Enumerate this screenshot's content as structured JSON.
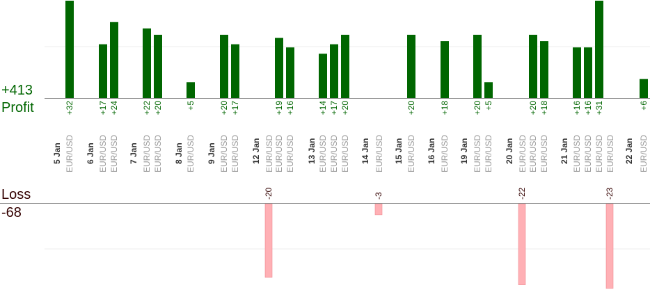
{
  "chart_data": {
    "type": "bar",
    "summary": {
      "profit_label": "Profit",
      "profit_total": "+413",
      "loss_label": "Loss",
      "loss_total": "-68"
    },
    "colors": {
      "profit": "#006600",
      "loss": "#ffb0b5",
      "profit_text": "#006600",
      "loss_text": "#330000",
      "date_text": "#333333",
      "pair_text": "#999999",
      "axis": "#888888",
      "grid": "#eeeeee"
    },
    "groups": [
      {
        "date": "5 Jan",
        "trades": [
          {
            "pair": "EUR/USD",
            "value": 32,
            "label": "+32"
          }
        ]
      },
      {
        "date": "6 Jan",
        "trades": [
          {
            "pair": "EUR/USD",
            "value": 17,
            "label": "+17"
          },
          {
            "pair": "EUR/USD",
            "value": 24,
            "label": "+24"
          }
        ]
      },
      {
        "date": "7 Jan",
        "trades": [
          {
            "pair": "EUR/USD",
            "value": 22,
            "label": "+22"
          },
          {
            "pair": "EUR/USD",
            "value": 20,
            "label": "+20"
          }
        ]
      },
      {
        "date": "8 Jan",
        "trades": [
          {
            "pair": "EUR/USD",
            "value": 5,
            "label": "+5"
          }
        ]
      },
      {
        "date": "9 Jan",
        "trades": [
          {
            "pair": "EUR/USD",
            "value": 20,
            "label": "+20"
          },
          {
            "pair": "EUR/USD",
            "value": 17,
            "label": "+17"
          }
        ]
      },
      {
        "date": "12 Jan",
        "trades": [
          {
            "pair": "EUR/USD",
            "value": -20,
            "label": "-20"
          },
          {
            "pair": "EUR/USD",
            "value": 19,
            "label": "+19"
          },
          {
            "pair": "EUR/USD",
            "value": 16,
            "label": "+16"
          }
        ]
      },
      {
        "date": "13 Jan",
        "trades": [
          {
            "pair": "EUR/USD",
            "value": 14,
            "label": "+14"
          },
          {
            "pair": "EUR/USD",
            "value": 17,
            "label": "+17"
          },
          {
            "pair": "EUR/USD",
            "value": 20,
            "label": "+20"
          }
        ]
      },
      {
        "date": "14 Jan",
        "trades": [
          {
            "pair": "EUR/USD",
            "value": -3,
            "label": "-3"
          }
        ]
      },
      {
        "date": "15 Jan",
        "trades": [
          {
            "pair": "EUR/USD",
            "value": 20,
            "label": "+20"
          }
        ]
      },
      {
        "date": "16 Jan",
        "trades": [
          {
            "pair": "EUR/USD",
            "value": 18,
            "label": "+18"
          }
        ]
      },
      {
        "date": "19 Jan",
        "trades": [
          {
            "pair": "EUR/USD",
            "value": 20,
            "label": "+20"
          },
          {
            "pair": "EUR/USD",
            "value": 5,
            "label": "+5"
          }
        ]
      },
      {
        "date": "20 Jan",
        "trades": [
          {
            "pair": "EUR/USD",
            "value": -22,
            "label": "-22"
          },
          {
            "pair": "EUR/USD",
            "value": 20,
            "label": "+20"
          },
          {
            "pair": "EUR/USD",
            "value": 18,
            "label": "+18"
          }
        ]
      },
      {
        "date": "21 Jan",
        "trades": [
          {
            "pair": "EUR/USD",
            "value": 16,
            "label": "+16"
          },
          {
            "pair": "EUR/USD",
            "value": 16,
            "label": "+16"
          },
          {
            "pair": "EUR/USD",
            "value": 31,
            "label": "+31"
          },
          {
            "pair": "EUR/USD",
            "value": -23,
            "label": "-23"
          }
        ]
      },
      {
        "date": "22 Jan",
        "trades": [
          {
            "pair": "EUR/USD",
            "value": 6,
            "label": "+6"
          }
        ]
      }
    ]
  }
}
